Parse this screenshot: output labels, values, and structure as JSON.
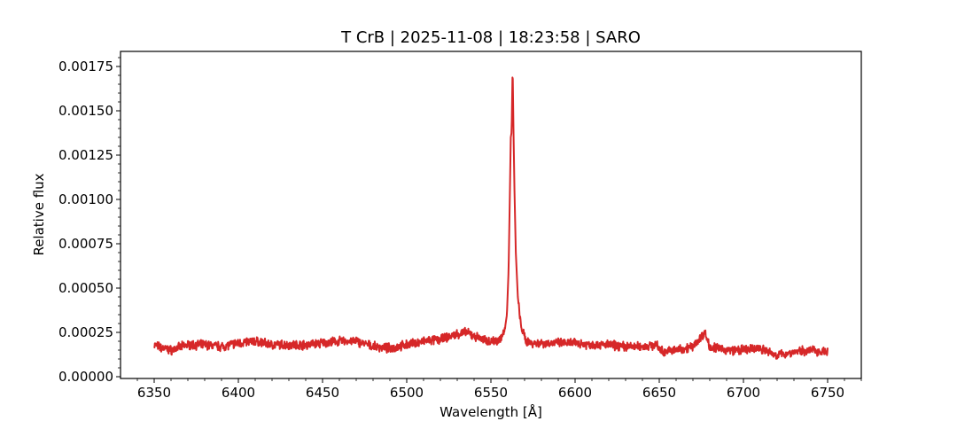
{
  "chart_data": {
    "type": "line",
    "title": "T CrB | 2025-11-08 | 18:23:58 | SARO",
    "xlabel": "Wavelength [Å]",
    "ylabel": "Relative flux",
    "xlim": [
      6330,
      6770
    ],
    "ylim": [
      -1e-05,
      0.001835
    ],
    "xticks": [
      6350,
      6400,
      6450,
      6500,
      6550,
      6600,
      6650,
      6700,
      6750
    ],
    "xtick_labels": [
      "6350",
      "6400",
      "6450",
      "6500",
      "6550",
      "6600",
      "6650",
      "6700",
      "6750"
    ],
    "yticks": [
      0,
      0.00025,
      0.0005,
      0.00075,
      0.001,
      0.00125,
      0.0015,
      0.00175
    ],
    "ytick_labels": [
      "0.00000",
      "0.00025",
      "0.00050",
      "0.00075",
      "0.00100",
      "0.00125",
      "0.00150",
      "0.00175"
    ],
    "grid": false,
    "color": "#d62728",
    "series": [
      {
        "x": [
          6350,
          6355,
          6360,
          6370,
          6380,
          6390,
          6400,
          6410,
          6420,
          6430,
          6440,
          6450,
          6460,
          6470,
          6480,
          6490,
          6500,
          6510,
          6520,
          6530,
          6535,
          6540,
          6545,
          6550,
          6555,
          6558,
          6559.5,
          6560.5,
          6561.3,
          6561.8,
          6562.3,
          6562.9,
          6563.4,
          6564,
          6564.8,
          6566,
          6567.5,
          6569,
          6571,
          6575,
          6580,
          6590,
          6600,
          6610,
          6620,
          6630,
          6640,
          6648,
          6652,
          6660,
          6670,
          6677,
          6680,
          6690,
          6700,
          6710,
          6720,
          6730,
          6740,
          6750
        ],
        "y": [
          0.00018,
          0.00016,
          0.00015,
          0.00018,
          0.00018,
          0.00017,
          0.00019,
          0.0002,
          0.00018,
          0.00018,
          0.00018,
          0.00019,
          0.0002,
          0.0002,
          0.00017,
          0.00016,
          0.00018,
          0.0002,
          0.00021,
          0.00024,
          0.00025,
          0.00023,
          0.00021,
          0.0002,
          0.00021,
          0.00025,
          0.00035,
          0.0006,
          0.00105,
          0.00135,
          0.00138,
          0.00175,
          0.0014,
          0.00105,
          0.0007,
          0.00045,
          0.00031,
          0.00025,
          0.0002,
          0.00019,
          0.00019,
          0.00019,
          0.00019,
          0.00018,
          0.00018,
          0.00017,
          0.00017,
          0.00018,
          0.00014,
          0.00015,
          0.00017,
          0.00025,
          0.00017,
          0.00015,
          0.00015,
          0.00016,
          0.00012,
          0.00014,
          0.00015,
          0.00014
        ]
      }
    ]
  }
}
